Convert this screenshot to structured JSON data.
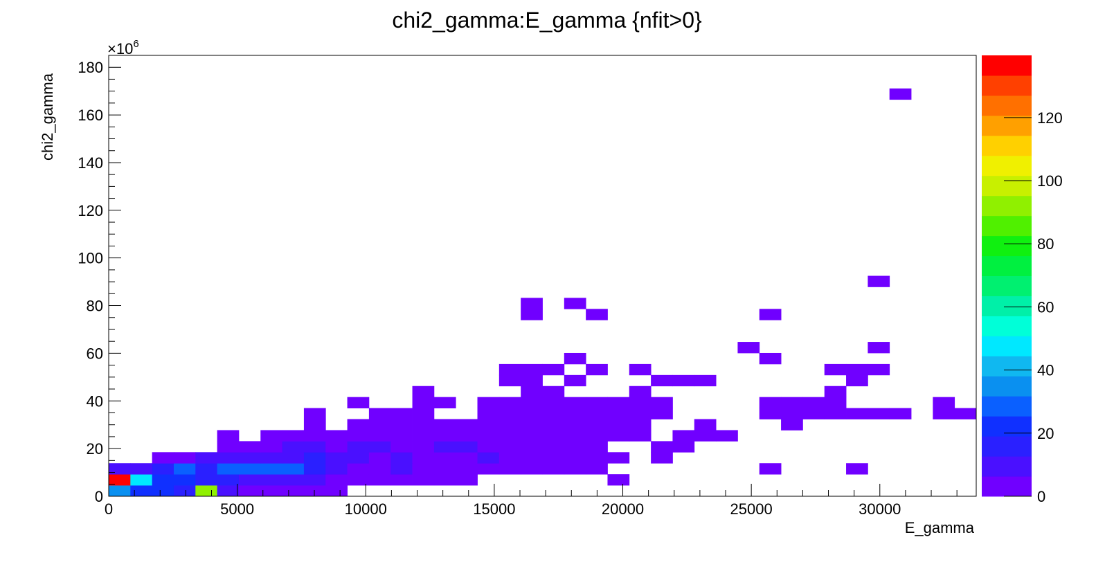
{
  "chart_data": {
    "type": "heatmap",
    "title": "chi2_gamma:E_gamma {nfit>0}",
    "xlabel": "E_gamma",
    "ylabel": "chi2_gamma",
    "y_multiplier_label": "×10",
    "y_multiplier_exp": "6",
    "xlim": [
      0,
      33750
    ],
    "ylim": [
      0,
      185
    ],
    "x_ticks": [
      0,
      5000,
      10000,
      15000,
      20000,
      25000,
      30000
    ],
    "x_tick_labels": [
      "0",
      "5000",
      "10000",
      "15000",
      "20000",
      "25000",
      "30000"
    ],
    "y_ticks": [
      0,
      20,
      40,
      60,
      80,
      100,
      120,
      140,
      160,
      180
    ],
    "y_tick_labels": [
      "0",
      "20",
      "40",
      "60",
      "80",
      "100",
      "120",
      "140",
      "160",
      "180"
    ],
    "bin_width_x": 843.75,
    "bin_height_y": 4.625,
    "z_range": [
      0,
      139.7
    ],
    "z_ticks": [
      0,
      20,
      40,
      60,
      80,
      100,
      120
    ],
    "z_tick_labels": [
      "0",
      "20",
      "40",
      "60",
      "80",
      "100",
      "120"
    ],
    "palette": [
      "#7000ff",
      "#4a10ff",
      "#2a20ff",
      "#1030ff",
      "#0a60ff",
      "#0a90f0",
      "#10b8f0",
      "#00e8ff",
      "#00ffd8",
      "#00f0a8",
      "#00f070",
      "#00f040",
      "#10f010",
      "#50f000",
      "#90f000",
      "#c8f000",
      "#f0f000",
      "#ffd000",
      "#ffa000",
      "#ff7000",
      "#ff4000",
      "#ff0000"
    ],
    "cells": [
      {
        "ix": 0,
        "iy": 0,
        "z": 34
      },
      {
        "ix": 1,
        "iy": 0,
        "z": 22
      },
      {
        "ix": 2,
        "iy": 0,
        "z": 22
      },
      {
        "ix": 3,
        "iy": 0,
        "z": 16
      },
      {
        "ix": 4,
        "iy": 0,
        "z": 93
      },
      {
        "ix": 5,
        "iy": 0,
        "z": 12
      },
      {
        "ix": 6,
        "iy": 0,
        "z": 3
      },
      {
        "ix": 7,
        "iy": 0,
        "z": 3
      },
      {
        "ix": 8,
        "iy": 0,
        "z": 3
      },
      {
        "ix": 9,
        "iy": 0,
        "z": 3
      },
      {
        "ix": 10,
        "iy": 0,
        "z": 3
      },
      {
        "ix": 0,
        "iy": 1,
        "z": 138
      },
      {
        "ix": 1,
        "iy": 1,
        "z": 48
      },
      {
        "ix": 2,
        "iy": 1,
        "z": 24
      },
      {
        "ix": 3,
        "iy": 1,
        "z": 24
      },
      {
        "ix": 4,
        "iy": 1,
        "z": 14
      },
      {
        "ix": 5,
        "iy": 1,
        "z": 16
      },
      {
        "ix": 6,
        "iy": 1,
        "z": 8
      },
      {
        "ix": 7,
        "iy": 1,
        "z": 8
      },
      {
        "ix": 8,
        "iy": 1,
        "z": 8
      },
      {
        "ix": 9,
        "iy": 1,
        "z": 8
      },
      {
        "ix": 10,
        "iy": 1,
        "z": 3
      },
      {
        "ix": 11,
        "iy": 1,
        "z": 3
      },
      {
        "ix": 12,
        "iy": 1,
        "z": 3
      },
      {
        "ix": 13,
        "iy": 1,
        "z": 3
      },
      {
        "ix": 14,
        "iy": 1,
        "z": 3
      },
      {
        "ix": 15,
        "iy": 1,
        "z": 3
      },
      {
        "ix": 16,
        "iy": 1,
        "z": 3
      },
      {
        "ix": 23,
        "iy": 1,
        "z": 3
      },
      {
        "ix": 0,
        "iy": 2,
        "z": 8
      },
      {
        "ix": 1,
        "iy": 2,
        "z": 8
      },
      {
        "ix": 2,
        "iy": 2,
        "z": 16
      },
      {
        "ix": 3,
        "iy": 2,
        "z": 26
      },
      {
        "ix": 4,
        "iy": 2,
        "z": 16
      },
      {
        "ix": 5,
        "iy": 2,
        "z": 26
      },
      {
        "ix": 6,
        "iy": 2,
        "z": 26
      },
      {
        "ix": 7,
        "iy": 2,
        "z": 26
      },
      {
        "ix": 8,
        "iy": 2,
        "z": 26
      },
      {
        "ix": 9,
        "iy": 2,
        "z": 16
      },
      {
        "ix": 10,
        "iy": 2,
        "z": 8
      },
      {
        "ix": 11,
        "iy": 2,
        "z": 3
      },
      {
        "ix": 12,
        "iy": 2,
        "z": 3
      },
      {
        "ix": 13,
        "iy": 2,
        "z": 8
      },
      {
        "ix": 14,
        "iy": 2,
        "z": 3
      },
      {
        "ix": 15,
        "iy": 2,
        "z": 3
      },
      {
        "ix": 16,
        "iy": 2,
        "z": 3
      },
      {
        "ix": 17,
        "iy": 2,
        "z": 3
      },
      {
        "ix": 18,
        "iy": 2,
        "z": 3
      },
      {
        "ix": 19,
        "iy": 2,
        "z": 3
      },
      {
        "ix": 20,
        "iy": 2,
        "z": 3
      },
      {
        "ix": 21,
        "iy": 2,
        "z": 3
      },
      {
        "ix": 22,
        "iy": 2,
        "z": 3
      },
      {
        "ix": 30,
        "iy": 2,
        "z": 3
      },
      {
        "ix": 34,
        "iy": 2,
        "z": 3
      },
      {
        "ix": 2,
        "iy": 3,
        "z": 3
      },
      {
        "ix": 3,
        "iy": 3,
        "z": 3
      },
      {
        "ix": 4,
        "iy": 3,
        "z": 8
      },
      {
        "ix": 5,
        "iy": 3,
        "z": 8
      },
      {
        "ix": 6,
        "iy": 3,
        "z": 8
      },
      {
        "ix": 7,
        "iy": 3,
        "z": 12
      },
      {
        "ix": 8,
        "iy": 3,
        "z": 8
      },
      {
        "ix": 9,
        "iy": 3,
        "z": 16
      },
      {
        "ix": 10,
        "iy": 3,
        "z": 8
      },
      {
        "ix": 11,
        "iy": 3,
        "z": 8
      },
      {
        "ix": 12,
        "iy": 3,
        "z": 3
      },
      {
        "ix": 13,
        "iy": 3,
        "z": 12
      },
      {
        "ix": 14,
        "iy": 3,
        "z": 3
      },
      {
        "ix": 15,
        "iy": 3,
        "z": 3
      },
      {
        "ix": 16,
        "iy": 3,
        "z": 3
      },
      {
        "ix": 17,
        "iy": 3,
        "z": 12
      },
      {
        "ix": 18,
        "iy": 3,
        "z": 3
      },
      {
        "ix": 19,
        "iy": 3,
        "z": 3
      },
      {
        "ix": 20,
        "iy": 3,
        "z": 3
      },
      {
        "ix": 21,
        "iy": 3,
        "z": 3
      },
      {
        "ix": 22,
        "iy": 3,
        "z": 3
      },
      {
        "ix": 23,
        "iy": 3,
        "z": 3
      },
      {
        "ix": 25,
        "iy": 3,
        "z": 3
      },
      {
        "ix": 5,
        "iy": 4,
        "z": 3
      },
      {
        "ix": 6,
        "iy": 4,
        "z": 3
      },
      {
        "ix": 7,
        "iy": 4,
        "z": 3
      },
      {
        "ix": 8,
        "iy": 4,
        "z": 8
      },
      {
        "ix": 9,
        "iy": 4,
        "z": 8
      },
      {
        "ix": 10,
        "iy": 4,
        "z": 3
      },
      {
        "ix": 11,
        "iy": 4,
        "z": 8
      },
      {
        "ix": 12,
        "iy": 4,
        "z": 8
      },
      {
        "ix": 13,
        "iy": 4,
        "z": 3
      },
      {
        "ix": 14,
        "iy": 4,
        "z": 3
      },
      {
        "ix": 15,
        "iy": 4,
        "z": 8
      },
      {
        "ix": 16,
        "iy": 4,
        "z": 8
      },
      {
        "ix": 17,
        "iy": 4,
        "z": 3
      },
      {
        "ix": 18,
        "iy": 4,
        "z": 3
      },
      {
        "ix": 19,
        "iy": 4,
        "z": 3
      },
      {
        "ix": 20,
        "iy": 4,
        "z": 3
      },
      {
        "ix": 21,
        "iy": 4,
        "z": 3
      },
      {
        "ix": 22,
        "iy": 4,
        "z": 3
      },
      {
        "ix": 25,
        "iy": 4,
        "z": 3
      },
      {
        "ix": 26,
        "iy": 4,
        "z": 3
      },
      {
        "ix": 5,
        "iy": 5,
        "z": 3
      },
      {
        "ix": 7,
        "iy": 5,
        "z": 3
      },
      {
        "ix": 8,
        "iy": 5,
        "z": 3
      },
      {
        "ix": 9,
        "iy": 5,
        "z": 3
      },
      {
        "ix": 10,
        "iy": 5,
        "z": 3
      },
      {
        "ix": 11,
        "iy": 5,
        "z": 3
      },
      {
        "ix": 12,
        "iy": 5,
        "z": 3
      },
      {
        "ix": 13,
        "iy": 5,
        "z": 3
      },
      {
        "ix": 14,
        "iy": 5,
        "z": 3
      },
      {
        "ix": 15,
        "iy": 5,
        "z": 3
      },
      {
        "ix": 16,
        "iy": 5,
        "z": 3
      },
      {
        "ix": 17,
        "iy": 5,
        "z": 3
      },
      {
        "ix": 18,
        "iy": 5,
        "z": 3
      },
      {
        "ix": 19,
        "iy": 5,
        "z": 3
      },
      {
        "ix": 20,
        "iy": 5,
        "z": 3
      },
      {
        "ix": 21,
        "iy": 5,
        "z": 3
      },
      {
        "ix": 22,
        "iy": 5,
        "z": 3
      },
      {
        "ix": 23,
        "iy": 5,
        "z": 3
      },
      {
        "ix": 24,
        "iy": 5,
        "z": 3
      },
      {
        "ix": 26,
        "iy": 5,
        "z": 3
      },
      {
        "ix": 27,
        "iy": 5,
        "z": 3
      },
      {
        "ix": 28,
        "iy": 5,
        "z": 3
      },
      {
        "ix": 9,
        "iy": 6,
        "z": 3
      },
      {
        "ix": 11,
        "iy": 6,
        "z": 3
      },
      {
        "ix": 12,
        "iy": 6,
        "z": 3
      },
      {
        "ix": 13,
        "iy": 6,
        "z": 3
      },
      {
        "ix": 14,
        "iy": 6,
        "z": 3
      },
      {
        "ix": 15,
        "iy": 6,
        "z": 3
      },
      {
        "ix": 16,
        "iy": 6,
        "z": 3
      },
      {
        "ix": 17,
        "iy": 6,
        "z": 3
      },
      {
        "ix": 18,
        "iy": 6,
        "z": 3
      },
      {
        "ix": 19,
        "iy": 6,
        "z": 3
      },
      {
        "ix": 20,
        "iy": 6,
        "z": 3
      },
      {
        "ix": 21,
        "iy": 6,
        "z": 3
      },
      {
        "ix": 22,
        "iy": 6,
        "z": 3
      },
      {
        "ix": 23,
        "iy": 6,
        "z": 3
      },
      {
        "ix": 24,
        "iy": 6,
        "z": 3
      },
      {
        "ix": 27,
        "iy": 6,
        "z": 3
      },
      {
        "ix": 31,
        "iy": 6,
        "z": 3
      },
      {
        "ix": 9,
        "iy": 7,
        "z": 3
      },
      {
        "ix": 12,
        "iy": 7,
        "z": 3
      },
      {
        "ix": 13,
        "iy": 7,
        "z": 3
      },
      {
        "ix": 14,
        "iy": 7,
        "z": 3
      },
      {
        "ix": 17,
        "iy": 7,
        "z": 3
      },
      {
        "ix": 18,
        "iy": 7,
        "z": 3
      },
      {
        "ix": 19,
        "iy": 7,
        "z": 3
      },
      {
        "ix": 20,
        "iy": 7,
        "z": 3
      },
      {
        "ix": 21,
        "iy": 7,
        "z": 3
      },
      {
        "ix": 22,
        "iy": 7,
        "z": 3
      },
      {
        "ix": 23,
        "iy": 7,
        "z": 3
      },
      {
        "ix": 24,
        "iy": 7,
        "z": 3
      },
      {
        "ix": 25,
        "iy": 7,
        "z": 3
      },
      {
        "ix": 30,
        "iy": 7,
        "z": 3
      },
      {
        "ix": 31,
        "iy": 7,
        "z": 3
      },
      {
        "ix": 32,
        "iy": 7,
        "z": 3
      },
      {
        "ix": 33,
        "iy": 7,
        "z": 3
      },
      {
        "ix": 34,
        "iy": 7,
        "z": 3
      },
      {
        "ix": 35,
        "iy": 7,
        "z": 3
      },
      {
        "ix": 36,
        "iy": 7,
        "z": 3
      },
      {
        "ix": 38,
        "iy": 7,
        "z": 3
      },
      {
        "ix": 39,
        "iy": 7,
        "z": 3
      },
      {
        "ix": 11,
        "iy": 8,
        "z": 3
      },
      {
        "ix": 14,
        "iy": 8,
        "z": 3
      },
      {
        "ix": 15,
        "iy": 8,
        "z": 3
      },
      {
        "ix": 17,
        "iy": 8,
        "z": 3
      },
      {
        "ix": 18,
        "iy": 8,
        "z": 3
      },
      {
        "ix": 19,
        "iy": 8,
        "z": 3
      },
      {
        "ix": 20,
        "iy": 8,
        "z": 3
      },
      {
        "ix": 21,
        "iy": 8,
        "z": 3
      },
      {
        "ix": 22,
        "iy": 8,
        "z": 3
      },
      {
        "ix": 23,
        "iy": 8,
        "z": 3
      },
      {
        "ix": 24,
        "iy": 8,
        "z": 3
      },
      {
        "ix": 25,
        "iy": 8,
        "z": 3
      },
      {
        "ix": 30,
        "iy": 8,
        "z": 3
      },
      {
        "ix": 31,
        "iy": 8,
        "z": 3
      },
      {
        "ix": 32,
        "iy": 8,
        "z": 3
      },
      {
        "ix": 33,
        "iy": 8,
        "z": 3
      },
      {
        "ix": 38,
        "iy": 8,
        "z": 3
      },
      {
        "ix": 14,
        "iy": 9,
        "z": 3
      },
      {
        "ix": 19,
        "iy": 9,
        "z": 3
      },
      {
        "ix": 20,
        "iy": 9,
        "z": 3
      },
      {
        "ix": 24,
        "iy": 9,
        "z": 3
      },
      {
        "ix": 33,
        "iy": 9,
        "z": 3
      },
      {
        "ix": 18,
        "iy": 10,
        "z": 3
      },
      {
        "ix": 19,
        "iy": 10,
        "z": 3
      },
      {
        "ix": 21,
        "iy": 10,
        "z": 3
      },
      {
        "ix": 25,
        "iy": 10,
        "z": 3
      },
      {
        "ix": 26,
        "iy": 10,
        "z": 3
      },
      {
        "ix": 27,
        "iy": 10,
        "z": 3
      },
      {
        "ix": 34,
        "iy": 10,
        "z": 3
      },
      {
        "ix": 18,
        "iy": 11,
        "z": 3
      },
      {
        "ix": 19,
        "iy": 11,
        "z": 3
      },
      {
        "ix": 20,
        "iy": 11,
        "z": 3
      },
      {
        "ix": 22,
        "iy": 11,
        "z": 3
      },
      {
        "ix": 24,
        "iy": 11,
        "z": 3
      },
      {
        "ix": 33,
        "iy": 11,
        "z": 3
      },
      {
        "ix": 34,
        "iy": 11,
        "z": 3
      },
      {
        "ix": 35,
        "iy": 11,
        "z": 3
      },
      {
        "ix": 21,
        "iy": 12,
        "z": 3
      },
      {
        "ix": 30,
        "iy": 12,
        "z": 3
      },
      {
        "ix": 29,
        "iy": 13,
        "z": 3
      },
      {
        "ix": 35,
        "iy": 13,
        "z": 3
      },
      {
        "ix": 19,
        "iy": 16,
        "z": 3
      },
      {
        "ix": 22,
        "iy": 16,
        "z": 3
      },
      {
        "ix": 30,
        "iy": 16,
        "z": 3
      },
      {
        "ix": 19,
        "iy": 17,
        "z": 3
      },
      {
        "ix": 21,
        "iy": 17,
        "z": 3
      },
      {
        "ix": 35,
        "iy": 19,
        "z": 3
      },
      {
        "ix": 36,
        "iy": 36,
        "z": 3
      }
    ]
  }
}
